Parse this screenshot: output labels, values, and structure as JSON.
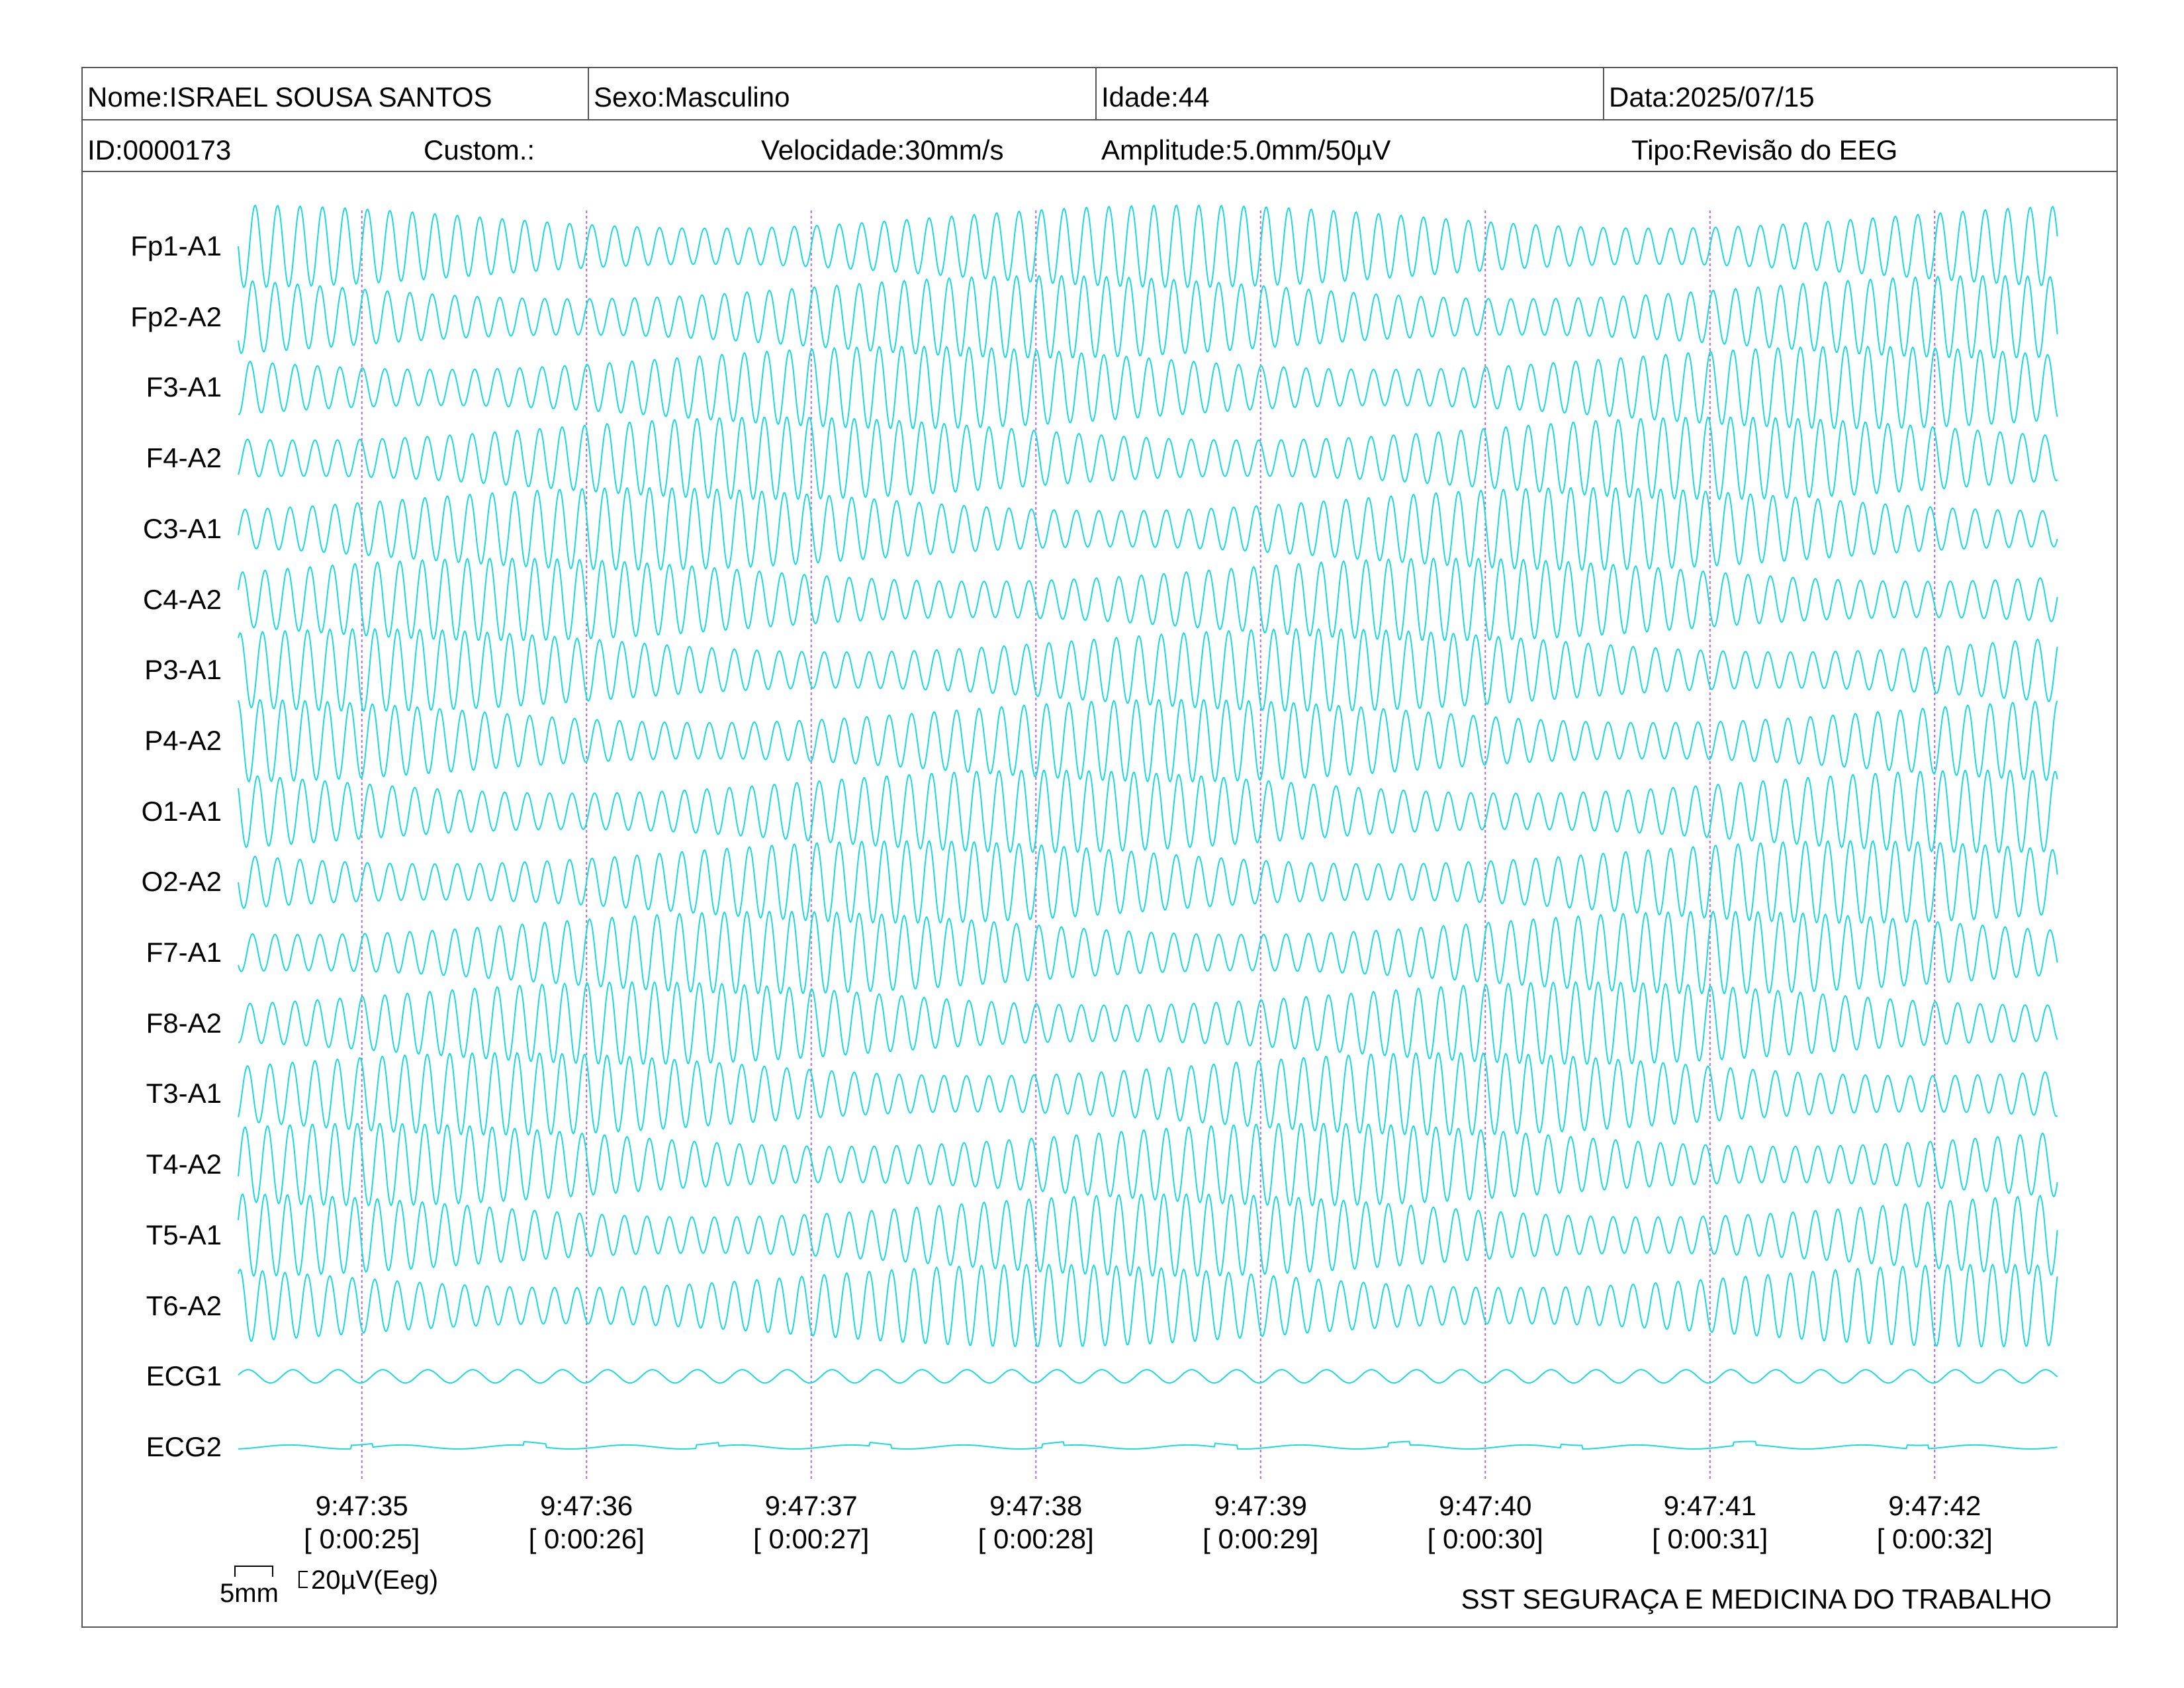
{
  "header": {
    "name": "Nome:ISRAEL SOUSA SANTOS",
    "sex": "Sexo:Masculino",
    "age": "Idade:44",
    "date": "Data:2025/07/15",
    "id": "ID:0000173",
    "custom": "Custom.:",
    "speed": "Velocidade:30mm/s",
    "amplitude": "Amplitude:5.0mm/50µV",
    "type": "Tipo:Revisão do EEG"
  },
  "scale": {
    "time_label": "5mm",
    "amp_label": "20µV(Eeg)"
  },
  "footer": "SST SEGURAÇA E MEDICINA DO TRABALHO",
  "colors": {
    "trace": "#19d9de",
    "marker": "#b266e0",
    "border": "#555555"
  },
  "chart_data": {
    "type": "line",
    "title": "",
    "xlabel": "",
    "ylabel": "",
    "channels": [
      "Fp1-A1",
      "Fp2-A2",
      "F3-A1",
      "F4-A2",
      "C3-A1",
      "C4-A2",
      "P3-A1",
      "P4-A2",
      "O1-A1",
      "O2-A2",
      "F7-A1",
      "F8-A2",
      "T3-A1",
      "T4-A2",
      "T5-A1",
      "T6-A2",
      "ECG1",
      "ECG2"
    ],
    "ticks": [
      {
        "time": "9:47:35",
        "elapsed": "[ 0:00:25]",
        "seconds": 25
      },
      {
        "time": "9:47:36",
        "elapsed": "[ 0:00:26]",
        "seconds": 26
      },
      {
        "time": "9:47:37",
        "elapsed": "[ 0:00:27]",
        "seconds": 27
      },
      {
        "time": "9:47:38",
        "elapsed": "[ 0:00:28]",
        "seconds": 28
      },
      {
        "time": "9:47:39",
        "elapsed": "[ 0:00:29]",
        "seconds": 29
      },
      {
        "time": "9:47:40",
        "elapsed": "[ 0:00:30]",
        "seconds": 30
      },
      {
        "time": "9:47:41",
        "elapsed": "[ 0:00:31]",
        "seconds": 31
      },
      {
        "time": "9:47:42",
        "elapsed": "[ 0:00:32]",
        "seconds": 32
      }
    ],
    "x_range_seconds": [
      24.45,
      32.55
    ],
    "eeg_frequency_hz": 10,
    "ecg1_frequency_hz": 5,
    "ecg2_frequency_hz": 2
  }
}
